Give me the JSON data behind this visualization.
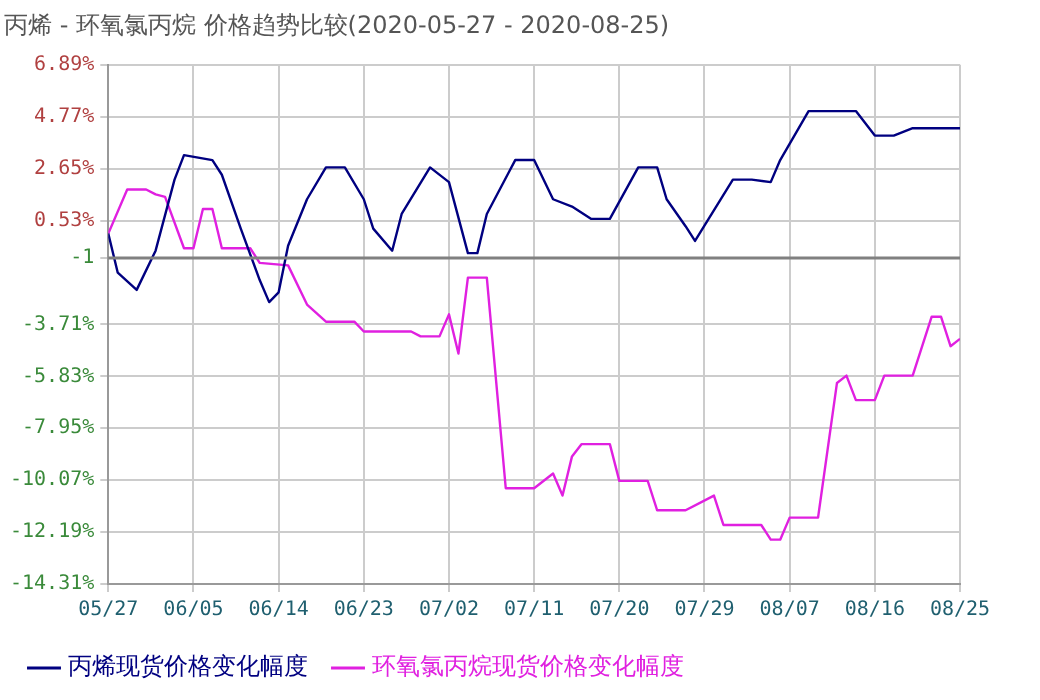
{
  "chart_data": {
    "type": "line",
    "title": "丙烯 - 环氧氯丙烷 价格趋势比较(2020-05-27 - 2020-08-25)",
    "series": [
      {
        "name": "丙烯现货价格变化幅度",
        "color": "#000080",
        "x": [
          "--05-27",
          "--05-28",
          "--05-30",
          "--06-01",
          "--06-03",
          "--06-04",
          "--06-07",
          "--06-08",
          "--06-10",
          "--06-12",
          "--06-13",
          "--06-14",
          "--06-15",
          "--06-17",
          "--06-19",
          "--06-21",
          "--06-23",
          "--06-24",
          "--06-26",
          "--06-27",
          "--06-30",
          "--07-02",
          "--07-04",
          "--07-05",
          "--07-06",
          "--07-09",
          "--07-11",
          "--07-13",
          "--07-15",
          "--07-17",
          "--07-19",
          "--07-22",
          "--07-24",
          "--07-25",
          "--07-27",
          "--07-28",
          "--08-01",
          "--08-03",
          "--08-05",
          "--08-06",
          "--08-09",
          "--08-14",
          "--08-16",
          "--08-18",
          "--08-20",
          "--08-25"
        ],
        "values": [
          0,
          -1.6,
          -2.3,
          -0.7,
          2.2,
          3.2,
          3.0,
          2.4,
          0.2,
          -1.9,
          -2.8,
          -2.4,
          -0.5,
          1.4,
          2.7,
          2.7,
          1.4,
          0.2,
          -0.7,
          0.8,
          2.7,
          2.1,
          -0.8,
          -0.8,
          0.8,
          3.0,
          3.0,
          1.4,
          1.1,
          0.6,
          0.6,
          2.7,
          2.7,
          1.4,
          0.3,
          -0.3,
          2.2,
          2.2,
          2.1,
          3.0,
          5.0,
          5.0,
          4.0,
          4.0,
          4.3,
          4.3
        ]
      },
      {
        "name": "环氧氯丙烷现货价格变化幅度",
        "color": "#e020e0",
        "x": [
          "--05-27",
          "--05-29",
          "--05-31",
          "--06-01",
          "--06-02",
          "--06-04",
          "--06-05",
          "--06-06",
          "--06-07",
          "--06-08",
          "--06-11",
          "--06-12",
          "--06-15",
          "--06-17",
          "--06-19",
          "--06-22",
          "--06-23",
          "--06-28",
          "--06-29",
          "--07-01",
          "--07-02",
          "--07-03",
          "--07-04",
          "--07-06",
          "--07-08",
          "--07-11",
          "--07-13",
          "--07-14",
          "--07-15",
          "--07-16",
          "--07-19",
          "--07-20",
          "--07-23",
          "--07-24",
          "--07-27",
          "--07-30",
          "--07-31",
          "--08-04",
          "--08-05",
          "--08-06",
          "--08-07",
          "--08-10",
          "--08-12",
          "--08-13",
          "--08-14",
          "--08-16",
          "--08-17",
          "--08-20",
          "--08-22",
          "--08-23",
          "--08-24",
          "--08-25"
        ],
        "values": [
          0,
          1.8,
          1.8,
          1.6,
          1.5,
          -0.6,
          -0.6,
          1.0,
          1.0,
          -0.6,
          -0.6,
          -1.2,
          -1.3,
          -2.9,
          -3.6,
          -3.6,
          -4.0,
          -4.0,
          -4.2,
          -4.2,
          -3.3,
          -4.9,
          -1.8,
          -1.8,
          -10.4,
          -10.4,
          -9.8,
          -10.7,
          -9.1,
          -8.6,
          -8.6,
          -10.1,
          -10.1,
          -11.3,
          -11.3,
          -10.7,
          -11.9,
          -11.9,
          -12.5,
          -12.5,
          -11.6,
          -11.6,
          -6.1,
          -5.8,
          -6.8,
          -6.8,
          -5.8,
          -5.8,
          -3.4,
          -3.4,
          -4.6,
          -4.3
        ]
      }
    ],
    "xlim": [
      "--05-27",
      "--08-25"
    ],
    "xticks": [
      {
        "value": "--05-27",
        "label": "05/27"
      },
      {
        "value": "--06-05",
        "label": "06/05"
      },
      {
        "value": "--06-14",
        "label": "06/14"
      },
      {
        "value": "--06-23",
        "label": "06/23"
      },
      {
        "value": "--07-02",
        "label": "07/02"
      },
      {
        "value": "--07-11",
        "label": "07/11"
      },
      {
        "value": "--07-20",
        "label": "07/20"
      },
      {
        "value": "--07-29",
        "label": "07/29"
      },
      {
        "value": "--08-07",
        "label": "08/07"
      },
      {
        "value": "--08-16",
        "label": "08/16"
      },
      {
        "value": "--08-25",
        "label": "08/25"
      }
    ],
    "ylim": [
      -14.31,
      6.89
    ],
    "yticks": [
      {
        "value": 6.89,
        "label": "6.89%"
      },
      {
        "value": 4.77,
        "label": "4.77%"
      },
      {
        "value": 2.65,
        "label": "2.65%"
      },
      {
        "value": 0.53,
        "label": "0.53%"
      },
      -1,
      {
        "value": -3.71,
        "label": "-3.71%"
      },
      {
        "value": -5.83,
        "label": "-5.83%"
      },
      {
        "value": -7.95,
        "label": "-7.95%"
      },
      {
        "value": -10.07,
        "label": "-10.07%"
      },
      {
        "value": -12.19,
        "label": "-12.19%"
      },
      {
        "value": -14.31,
        "label": "-14.31%"
      }
    ],
    "ref_lines": [
      {
        "axis": "y",
        "value": -1,
        "color": "#808080"
      }
    ],
    "grid": true,
    "legend": "bottom",
    "marker": "none",
    "line_style": "solid"
  }
}
